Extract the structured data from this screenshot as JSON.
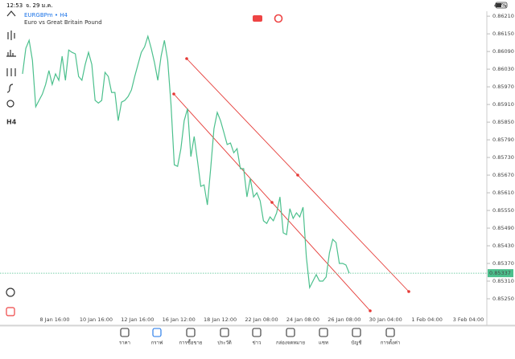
{
  "status_bar": {
    "time": "12:53",
    "date": "จ. 29 ม.ค.",
    "battery": "47%"
  },
  "chart_data": {
    "type": "line",
    "symbol": "EURGBPm • H4",
    "description": "Euro vs Great Britain Pound",
    "timeframe": "H4",
    "series": [
      {
        "name": "EURGBPm",
        "color": "#4cc08d",
        "values": [
          0.86014,
          0.86101,
          0.86128,
          0.8606,
          0.85902,
          0.85924,
          0.85945,
          0.85978,
          0.86025,
          0.85978,
          0.86014,
          0.85992,
          0.86074,
          0.85992,
          0.86095,
          0.86087,
          0.86082,
          0.86005,
          0.85992,
          0.86046,
          0.86087,
          0.86046,
          0.85924,
          0.85915,
          0.85924,
          0.86019,
          0.86005,
          0.85951,
          0.85951,
          0.85855,
          0.85918,
          0.85924,
          0.85937,
          0.85959,
          0.86005,
          0.86046,
          0.86087,
          0.86106,
          0.86142,
          0.86101,
          0.86052,
          0.85992,
          0.86074,
          0.86128,
          0.8606,
          0.8591,
          0.85705,
          0.857,
          0.8576,
          0.85855,
          0.85896,
          0.85733,
          0.85801,
          0.85719,
          0.85632,
          0.85637,
          0.85569,
          0.85692,
          0.85828,
          0.85883,
          0.85855,
          0.85815,
          0.85774,
          0.85779,
          0.85746,
          0.8576,
          0.85692,
          0.85692,
          0.85596,
          0.85659,
          0.85596,
          0.8561,
          0.85583,
          0.85515,
          0.85506,
          0.85528,
          0.85515,
          0.85542,
          0.85596,
          0.85474,
          0.85468,
          0.85556,
          0.85523,
          0.85542,
          0.85528,
          0.85561,
          0.85392,
          0.85288,
          0.8531,
          0.85332,
          0.8531,
          0.8531,
          0.85324,
          0.85406,
          0.85452,
          0.85441,
          0.8537,
          0.8537,
          0.85365,
          0.85337
        ]
      }
    ],
    "current_price": 0.85337,
    "ylim": [
      0.8516,
      0.86224
    ],
    "yticks": [
      {
        "value": 0.8621,
        "label": "0.86210"
      },
      {
        "value": 0.8615,
        "label": "0.86150"
      },
      {
        "value": 0.8609,
        "label": "0.86090"
      },
      {
        "value": 0.8603,
        "label": "0.86030"
      },
      {
        "value": 0.8597,
        "label": "0.85970"
      },
      {
        "value": 0.8591,
        "label": "0.85910"
      },
      {
        "value": 0.8585,
        "label": "0.85850"
      },
      {
        "value": 0.8579,
        "label": "0.85790"
      },
      {
        "value": 0.8573,
        "label": "0.85730"
      },
      {
        "value": 0.8567,
        "label": "0.85670"
      },
      {
        "value": 0.8561,
        "label": "0.85610"
      },
      {
        "value": 0.8555,
        "label": "0.85550"
      },
      {
        "value": 0.8549,
        "label": "0.85490"
      },
      {
        "value": 0.8543,
        "label": "0.85430"
      },
      {
        "value": 0.8537,
        "label": "0.85370"
      },
      {
        "value": 0.8531,
        "label": "0.85310"
      },
      {
        "value": 0.8525,
        "label": "0.85250"
      }
    ],
    "x_labels": [
      "8 Jan 16:00",
      "10 Jan 16:00",
      "12 Jan 16:00",
      "16 Jan 12:00",
      "18 Jan 12:00",
      "22 Jan 08:00",
      "24 Jan 08:00",
      "26 Jan 08:00",
      "30 Jan 04:00",
      "1 Feb 04:00",
      "3 Feb 04:00"
    ]
  },
  "toolbar": [
    "ราคา",
    "กราฟ",
    "การซื้อขาย",
    "ประวัติ",
    "ข่าว",
    "กล่องจดหมาย",
    "แชท",
    "บัญชี",
    "การตั้งค่า"
  ]
}
